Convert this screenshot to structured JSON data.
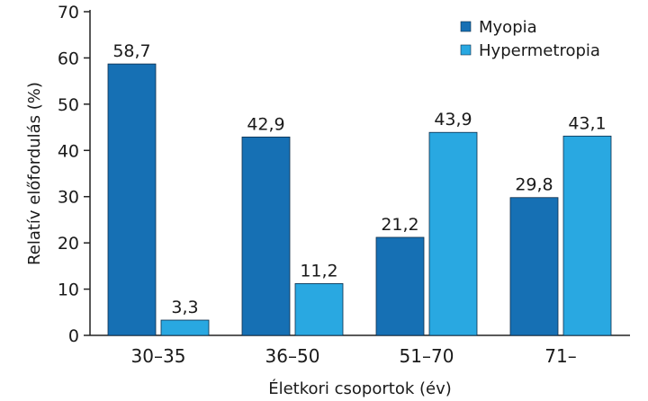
{
  "chart_data": {
    "type": "bar",
    "categories": [
      "30–35",
      "36–50",
      "51–70",
      "71–"
    ],
    "series": [
      {
        "name": "Myopia",
        "values": [
          58.7,
          42.9,
          21.2,
          29.8
        ],
        "labels": [
          "58,7",
          "42,9",
          "21,2",
          "29,8"
        ],
        "color": "#1670b4"
      },
      {
        "name": "Hypermetropia",
        "values": [
          3.3,
          11.2,
          43.9,
          43.1
        ],
        "labels": [
          "3,3",
          "11,2",
          "43,9",
          "43,1"
        ],
        "color": "#29a8e1"
      }
    ],
    "xlabel": "Életkori csoportok (év)",
    "ylabel": "Relatív előfordulás (%)",
    "ylim": [
      0,
      70
    ],
    "yticks": [
      0,
      10,
      20,
      30,
      40,
      50,
      60,
      70
    ],
    "grid": false,
    "legend": "top-right"
  }
}
